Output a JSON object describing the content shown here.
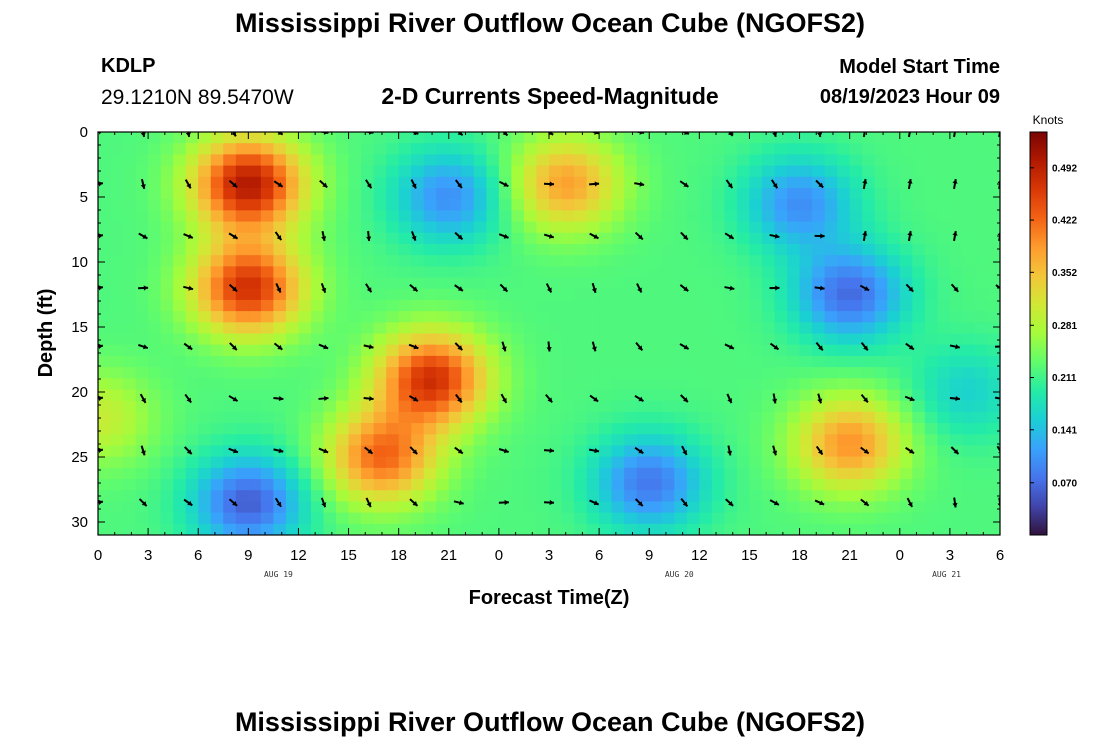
{
  "page": {
    "title": "Mississippi River Outflow Ocean Cube (NGOFS2)",
    "station_id": "KDLP",
    "station_coords": "29.1210N  89.5470W",
    "subtitle": "2-D Currents Speed-Magnitude",
    "model_start_label": "Model Start Time",
    "model_start_value": "08/19/2023 Hour 09",
    "title_repeat": "Mississippi River Outflow Ocean Cube (NGOFS2)"
  },
  "chart_data": {
    "type": "heatmap",
    "xlabel": "Forecast Time(Z)",
    "ylabel": "Depth (ft)",
    "x_range_hours": [
      0,
      54
    ],
    "y_range_ft": [
      0,
      31
    ],
    "x_tick_labels": [
      "0",
      "3",
      "6",
      "9",
      "12",
      "15",
      "18",
      "21",
      "0",
      "3",
      "6",
      "9",
      "12",
      "15",
      "18",
      "21",
      "0",
      "3",
      "6"
    ],
    "x_tick_hours": [
      0,
      3,
      6,
      9,
      12,
      15,
      18,
      21,
      24,
      27,
      30,
      33,
      36,
      39,
      42,
      45,
      48,
      51,
      54
    ],
    "y_ticks": [
      0,
      5,
      10,
      15,
      20,
      25,
      30
    ],
    "date_labels": [
      {
        "text": "AUG 19",
        "hour": 10.8
      },
      {
        "text": "AUG 20",
        "hour": 34.8
      },
      {
        "text": "AUG 21",
        "hour": 50.8
      }
    ],
    "colorbar": {
      "unit": "Knots",
      "min": 0,
      "max": 0.54,
      "tick_values": [
        0.07,
        0.141,
        0.211,
        0.281,
        0.352,
        0.422,
        0.492
      ],
      "tick_labels": [
        "0.070",
        "0.141",
        "0.211",
        "0.281",
        "0.352",
        "0.422",
        "0.492"
      ],
      "colormap": [
        "#30123b",
        "#4145ab",
        "#4675ed",
        "#39a2fc",
        "#1bcfd4",
        "#24eca6",
        "#61fc6c",
        "#a4fc3b",
        "#d1e834",
        "#f3c63a",
        "#fe9b2d",
        "#f36315",
        "#d93806",
        "#b11901",
        "#7a0403"
      ]
    },
    "speed_blobs_knots": [
      {
        "hour": 9,
        "depth": 4,
        "value": 0.5
      },
      {
        "hour": 9,
        "depth": 12,
        "value": 0.47
      },
      {
        "hour": 20,
        "depth": 19,
        "value": 0.47
      },
      {
        "hour": 17,
        "depth": 25,
        "value": 0.42
      },
      {
        "hour": 28,
        "depth": 4,
        "value": 0.38
      },
      {
        "hour": 21,
        "depth": 5,
        "value": 0.1
      },
      {
        "hour": 9,
        "depth": 28.5,
        "value": 0.06
      },
      {
        "hour": 33,
        "depth": 27,
        "value": 0.08
      },
      {
        "hour": 42,
        "depth": 5.5,
        "value": 0.1
      },
      {
        "hour": 45,
        "depth": 12.5,
        "value": 0.07
      },
      {
        "hour": 45,
        "depth": 24,
        "value": 0.39
      },
      {
        "hour": 52,
        "depth": 20,
        "value": 0.16
      },
      {
        "hour": 0,
        "depth": 22,
        "value": 0.3
      }
    ],
    "background_speed_knots": 0.22
  }
}
